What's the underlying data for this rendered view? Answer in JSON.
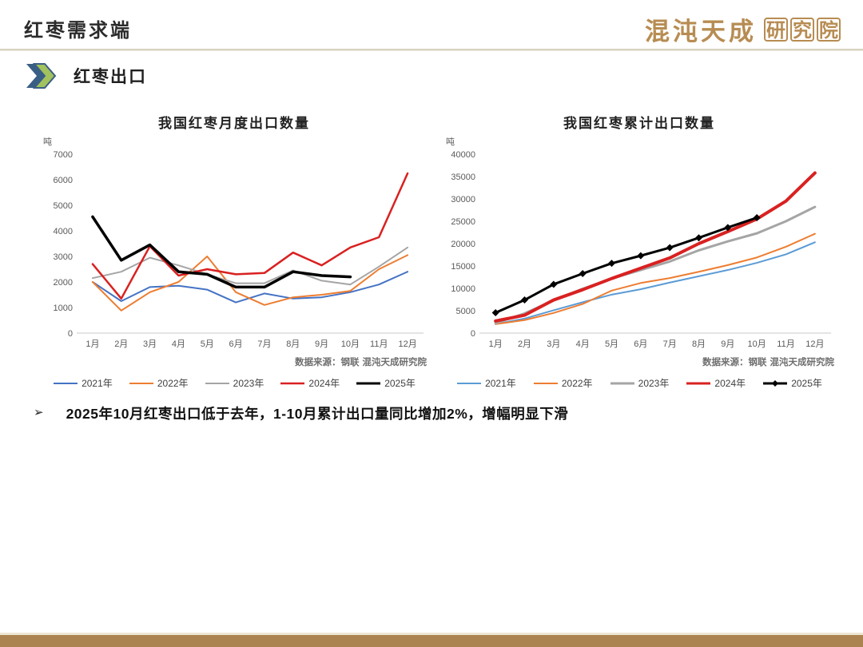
{
  "header": {
    "title": "红枣需求端",
    "logo_script": "混沌天成",
    "logo_seal_chars": [
      "研",
      "究",
      "院"
    ]
  },
  "section": {
    "heading": "红枣出口"
  },
  "source_note": "数据来源：钢联  混沌天成研究院",
  "bullet": {
    "marker": "➢",
    "text": "2025年10月红枣出口低于去年，1-10月累计出口量同比增加2%，增幅明显下滑"
  },
  "colors": {
    "accent_gold": "#AA8351",
    "divider_beige": "#D8D2BF",
    "chevron_green": "#A2C25E",
    "chevron_blue": "#3A5F85",
    "series_2021_left": "#4472C4",
    "series_2021_right": "#5B9BD5",
    "series_2022": "#ED7D31",
    "series_2023": "#A5A5A5",
    "series_2024": "#D92121",
    "series_2025": "#000000"
  },
  "chart_data": [
    {
      "type": "line",
      "title": "我国红枣月度出口数量",
      "ylabel": "吨",
      "ylim": [
        0,
        7000
      ],
      "ytick_step": 1000,
      "grid": false,
      "legend_position": "bottom",
      "categories": [
        "1月",
        "2月",
        "3月",
        "4月",
        "5月",
        "6月",
        "7月",
        "8月",
        "9月",
        "10月",
        "11月",
        "12月"
      ],
      "series": [
        {
          "name": "2021年",
          "color": "#4472C4",
          "width": 2,
          "values": [
            2000,
            1250,
            1800,
            1850,
            1700,
            1200,
            1550,
            1350,
            1400,
            1600,
            1900,
            2400
          ]
        },
        {
          "name": "2022年",
          "color": "#ED7D31",
          "width": 2,
          "values": [
            2000,
            880,
            1600,
            2000,
            3000,
            1600,
            1100,
            1400,
            1500,
            1650,
            2500,
            3050
          ]
        },
        {
          "name": "2023年",
          "color": "#A5A5A5",
          "width": 2,
          "values": [
            2150,
            2400,
            2950,
            2650,
            2300,
            1950,
            1950,
            2450,
            2050,
            1900,
            2600,
            3350
          ]
        },
        {
          "name": "2024年",
          "color": "#D92121",
          "width": 2.5,
          "values": [
            2700,
            1350,
            3400,
            2250,
            2500,
            2300,
            2350,
            3150,
            2650,
            3350,
            3750,
            6250
          ]
        },
        {
          "name": "2025年",
          "color": "#000000",
          "width": 3.5,
          "values": [
            4550,
            2850,
            3450,
            2400,
            2300,
            1800,
            1800,
            2400,
            2250,
            2200
          ]
        }
      ]
    },
    {
      "type": "line",
      "title": "我国红枣累计出口数量",
      "ylabel": "吨",
      "ylim": [
        0,
        40000
      ],
      "ytick_step": 5000,
      "grid": false,
      "legend_position": "bottom",
      "categories": [
        "1月",
        "2月",
        "3月",
        "4月",
        "5月",
        "6月",
        "7月",
        "8月",
        "9月",
        "10月",
        "11月",
        "12月"
      ],
      "series": [
        {
          "name": "2021年",
          "color": "#5B9BD5",
          "width": 2,
          "values": [
            2000,
            3250,
            5100,
            6900,
            8600,
            9800,
            11300,
            12700,
            14100,
            15700,
            17600,
            20300
          ]
        },
        {
          "name": "2022年",
          "color": "#ED7D31",
          "width": 2,
          "values": [
            2000,
            2900,
            4500,
            6500,
            9500,
            11200,
            12300,
            13700,
            15200,
            16900,
            19300,
            22200
          ]
        },
        {
          "name": "2023年",
          "color": "#A5A5A5",
          "width": 3,
          "values": [
            2200,
            4400,
            7300,
            9900,
            12200,
            14100,
            16000,
            18500,
            20500,
            22300,
            25000,
            28200
          ]
        },
        {
          "name": "2024年",
          "color": "#D92121",
          "width": 4,
          "values": [
            2700,
            4000,
            7400,
            9700,
            12200,
            14500,
            16800,
            20000,
            22700,
            25500,
            29500,
            35800
          ]
        },
        {
          "name": "2025年",
          "color": "#000000",
          "width": 3,
          "marker": "diamond",
          "values": [
            4550,
            7400,
            10900,
            13300,
            15600,
            17300,
            19100,
            21300,
            23600,
            25800
          ]
        }
      ]
    }
  ]
}
